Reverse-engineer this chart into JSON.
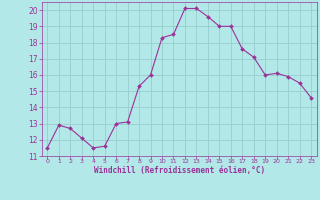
{
  "xlabel": "Windchill (Refroidissement éolien,°C)",
  "x": [
    0,
    1,
    2,
    3,
    4,
    5,
    6,
    7,
    8,
    9,
    10,
    11,
    12,
    13,
    14,
    15,
    16,
    17,
    18,
    19,
    20,
    21,
    22,
    23
  ],
  "y": [
    11.5,
    12.9,
    12.7,
    12.1,
    11.5,
    11.6,
    13.0,
    13.1,
    15.3,
    16.0,
    18.3,
    18.5,
    20.1,
    20.1,
    19.6,
    19.0,
    19.0,
    17.6,
    17.1,
    16.0,
    16.1,
    15.9,
    15.5,
    14.6
  ],
  "line_color": "#993399",
  "marker_color": "#993399",
  "bg_color": "#b3e8e8",
  "grid_color": "#99cccc",
  "tick_label_color": "#993399",
  "ylim": [
    11,
    20.5
  ],
  "yticks": [
    11,
    12,
    13,
    14,
    15,
    16,
    17,
    18,
    19,
    20
  ],
  "xlim": [
    -0.5,
    23.5
  ],
  "xticks": [
    0,
    1,
    2,
    3,
    4,
    5,
    6,
    7,
    8,
    9,
    10,
    11,
    12,
    13,
    14,
    15,
    16,
    17,
    18,
    19,
    20,
    21,
    22,
    23
  ]
}
